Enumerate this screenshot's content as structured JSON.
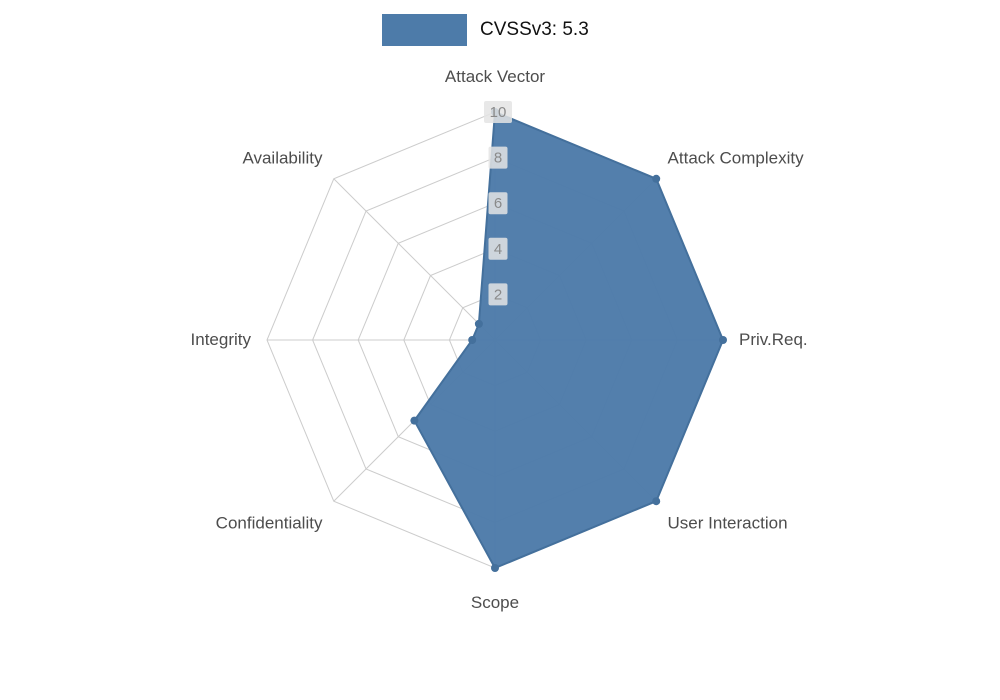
{
  "legend": {
    "label": "CVSSv3: 5.3"
  },
  "chart_data": {
    "type": "radar",
    "title": "CVSSv3: 5.3",
    "categories": [
      "Attack Vector",
      "Attack Complexity",
      "Priv.Req.",
      "User Interaction",
      "Scope",
      "Confidentiality",
      "Integrity",
      "Availability"
    ],
    "series": [
      {
        "name": "CVSSv3: 5.3",
        "values": [
          10,
          10,
          10,
          10,
          10,
          5,
          1,
          1
        ]
      }
    ],
    "ticks": [
      2,
      4,
      6,
      8,
      10
    ],
    "rmax": 10,
    "legend_position": "top",
    "grid": true,
    "colors": {
      "fill": "#4d7ba9",
      "stroke": "#44709c",
      "grid": "#cccccc",
      "axis_label": "#4d4d4d",
      "tick_label": "#8a8a8a",
      "tick_bg": "#e4e4e4"
    }
  }
}
